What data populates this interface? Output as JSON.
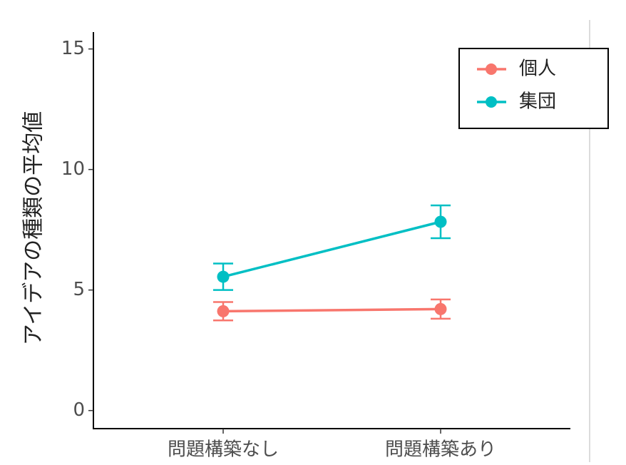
{
  "chart_data": {
    "type": "line",
    "y_label": "アイデアの種類の平均値",
    "categories": [
      "問題構築なし",
      "問題構築あり"
    ],
    "series": [
      {
        "name": "個人",
        "color": "#f8766d",
        "values": [
          4.12,
          4.21
        ],
        "errors": [
          0.38,
          0.4
        ]
      },
      {
        "name": "集団",
        "color": "#00bfc4",
        "values": [
          5.55,
          7.83
        ],
        "errors": [
          0.55,
          0.68
        ]
      }
    ],
    "ylim": [
      -0.75,
      15.7
    ],
    "yticks": [
      0,
      5,
      10,
      15
    ],
    "grid": false,
    "legend": "top-right"
  }
}
